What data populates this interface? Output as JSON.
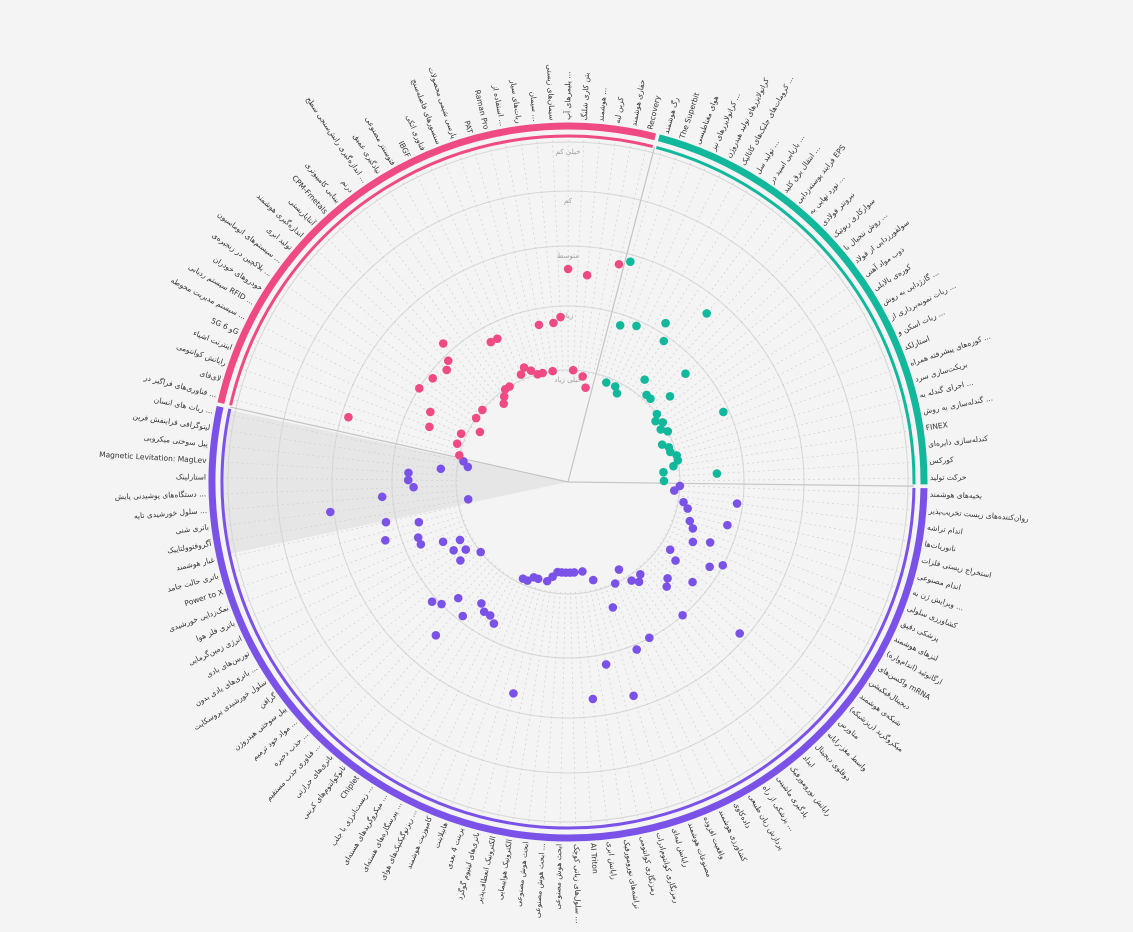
{
  "chart_data": {
    "type": "scatter",
    "subtype": "radial-dot-plot",
    "title": "",
    "ring_labels": [
      "خیلی کم",
      "کم",
      "متوسط",
      "زیاد",
      "خیلی زیاد"
    ],
    "start_angle_deg": 90,
    "sectors": [
      {
        "name": "purple",
        "color": "#7b52e8"
      },
      {
        "name": "teal",
        "color": "#12b89b"
      },
      {
        "name": "pink",
        "color": "#ef4a84"
      }
    ],
    "items": [
      {
        "label": "بخیه‌های هوشمند",
        "sector": "purple",
        "value": 4.4
      },
      {
        "label": "روان‌کننده‌های زیست تخریب‌پذیر",
        "sector": "purple",
        "value": 4.5
      },
      {
        "label": "اندام تراشه",
        "sector": "purple",
        "value": 3.3
      },
      {
        "label": "نانوربات‌ها",
        "sector": "purple",
        "value": 4.3
      },
      {
        "label": "استخراج زیستی فلزات",
        "sector": "purple",
        "value": 4.2
      },
      {
        "label": "اندام مصنوعی",
        "sector": "purple",
        "value": 3.4
      },
      {
        "label": "ویرایش ژن به ...",
        "sector": "purple",
        "value": 4.1
      },
      {
        "label": "کشاورزی سلولی",
        "sector": "purple",
        "value": 4.0
      },
      {
        "label": "پزشکی دقیق",
        "sector": "purple",
        "value": 3.6
      },
      {
        "label": "لنزهای هوشمند",
        "sector": "purple",
        "value": 3.9
      },
      {
        "label": "ارگانوئید (اندام‌واره)",
        "sector": "purple",
        "value": 3.2
      },
      {
        "label": "واکسن‌های mRNA",
        "sector": "purple",
        "value": 3.4
      },
      {
        "label": "دیجیتال‌فیکیشن",
        "sector": "purple",
        "value": 4.2
      },
      {
        "label": "شبکه‌ی هوشمند",
        "sector": "purple",
        "value": 4.0
      },
      {
        "label": "میکروگرید (ریزشبکه)",
        "sector": "purple",
        "value": 3.5
      },
      {
        "label": "متاورس",
        "sector": "purple",
        "value": 2.2
      },
      {
        "label": "واسط مغز-رایانه",
        "sector": "purple",
        "value": 3.9
      },
      {
        "label": "دوقلوی دیجیتال",
        "sector": "purple",
        "value": 3.8
      },
      {
        "label": "ابداد",
        "sector": "purple",
        "value": 3.2
      },
      {
        "label": "رایانش نورومورفیک",
        "sector": "purple",
        "value": 4.3
      },
      {
        "label": "یادگیری ماشینی",
        "sector": "purple",
        "value": 4.2
      },
      {
        "label": "پزشکی از راه ...",
        "sector": "purple",
        "value": 4.3
      },
      {
        "label": "پردازش زبان طبیعی",
        "sector": "purple",
        "value": 4.6
      },
      {
        "label": "داده‌کاوی",
        "sector": "purple",
        "value": 3.2
      },
      {
        "label": "کشاورزی هوشمند",
        "sector": "purple",
        "value": 4.4
      },
      {
        "label": "واقعیت افزوده",
        "sector": "purple",
        "value": 3.1
      },
      {
        "label": "مصنوعات هوشمند",
        "sector": "purple",
        "value": 4.0
      },
      {
        "label": "رایانش لبه‌ای",
        "sector": "purple",
        "value": 2.3
      },
      {
        "label": "رمزنگاری کوانتوم‌ادرات",
        "sector": "purple",
        "value": 4.6
      },
      {
        "label": "رمزنگاری کوانتومی",
        "sector": "purple",
        "value": 3.0
      },
      {
        "label": "تراشه‌های نورومورفیک",
        "sector": "purple",
        "value": 4.8
      },
      {
        "label": "رایانش ابری",
        "sector": "purple",
        "value": 2.4
      },
      {
        "label": "AI Triton",
        "sector": "purple",
        "value": 4.8
      },
      {
        "label": "سلول‌های زیاتی کوچک ...",
        "sector": "purple",
        "value": 4.8
      },
      {
        "label": "ابحث هوش مصنوعی",
        "sector": "purple",
        "value": 4.8
      },
      {
        "label": "ابحث هوش مصنوعی ...",
        "sector": "purple",
        "value": 4.8
      },
      {
        "label": "ابحث هوش مصنوعی",
        "sector": "purple",
        "value": 4.8
      },
      {
        "label": "الکترونیک هواپیمایی",
        "sector": "purple",
        "value": 4.7
      },
      {
        "label": "الکترونیک انعطاف‌پذیر",
        "sector": "purple",
        "value": 4.6
      },
      {
        "label": "باتری‌های لیتیوم گوگرد",
        "sector": "purple",
        "value": 2.4
      },
      {
        "label": "پرینت 4 بعدی",
        "sector": "purple",
        "value": 4.6
      },
      {
        "label": "هابیلاینت",
        "sector": "purple",
        "value": 4.6
      },
      {
        "label": "کامپوزیت هوشمند",
        "sector": "purple",
        "value": 4.5
      },
      {
        "label": "ریزتوگیکنیک‌های هوای ...",
        "sector": "purple",
        "value": 4.5
      },
      {
        "label": "پیرسگاره‌های هسته‌ای ...",
        "sector": "purple",
        "value": 3.5
      },
      {
        "label": "میکروگرید‌های هسته‌ای ...",
        "sector": "purple",
        "value": 3.6
      },
      {
        "label": "زیست‌انرژی با جلب ...",
        "sector": "purple",
        "value": 3.6
      },
      {
        "label": "Chiplet",
        "sector": "purple",
        "value": 3.7
      },
      {
        "label": "نانوکوانتوم‌های کربنی",
        "sector": "purple",
        "value": 3.3
      },
      {
        "label": "باتری‌های حرارتی",
        "sector": "purple",
        "value": 2.7
      },
      {
        "label": "فناوری جذب مستقیم ...",
        "sector": "purple",
        "value": 3.5
      },
      {
        "label": "حذب ذخیره ...",
        "sector": "purple",
        "value": 3.2
      },
      {
        "label": "مواد خود ترمیم ...",
        "sector": "purple",
        "value": 3.1
      },
      {
        "label": "پیل سوختی هیدروژن",
        "sector": "purple",
        "value": 4.4
      },
      {
        "label": "گرافن",
        "sector": "purple",
        "value": 4.0
      },
      {
        "label": "سلول خورشیدی پروسکایت",
        "sector": "purple",
        "value": 4.2
      },
      {
        "label": "باتری‌های یادی بدون ...",
        "sector": "purple",
        "value": 4.0
      },
      {
        "label": "توربین‌های بادی",
        "sector": "purple",
        "value": 4.2
      },
      {
        "label": "انرژی زمین‌گرمایی",
        "sector": "purple",
        "value": 3.9
      },
      {
        "label": "باتری فلز هوا",
        "sector": "purple",
        "value": 3.5
      },
      {
        "label": "نمک‌زدایی خورشیدی",
        "sector": "purple",
        "value": 3.5
      },
      {
        "label": "Power to X",
        "sector": "purple",
        "value": 2.9
      },
      {
        "label": "باتری حالت جامد",
        "sector": "purple",
        "value": 3.6
      },
      {
        "label": "غبار هوشمند",
        "sector": "purple",
        "value": 3.0
      },
      {
        "label": "آگروفتوولتاییک",
        "sector": "purple",
        "value": 4.6
      },
      {
        "label": "باتری شنی",
        "sector": "purple",
        "value": 2.0
      },
      {
        "label": "سلول خورشیدی تایه ...",
        "sector": "purple",
        "value": 3.0
      },
      {
        "label": "دستگاه‌های پوشیدنی پایش ...",
        "sector": "purple",
        "value": 3.6
      },
      {
        "label": "استارلینک",
        "sector": "purple",
        "value": 3.5
      },
      {
        "label": "Magnetic Levitation: MagLev",
        "sector": "purple",
        "value": 3.5
      },
      {
        "label": "پیل سوختی میکروبی",
        "sector": "purple",
        "value": 4.1
      },
      {
        "label": "لیتوگرافی فرابنفش فرین",
        "sector": "purple",
        "value": 4.6
      },
      {
        "label": "ربات های انسان ...",
        "sector": "purple",
        "value": 4.5
      },
      {
        "label": "فناوری‌های فراگیر در ...",
        "sector": "pink",
        "value": 4.4
      },
      {
        "label": "لای‌فای",
        "sector": "pink",
        "value": 2.2
      },
      {
        "label": "رایانش کوانتومی",
        "sector": "pink",
        "value": 4.3
      },
      {
        "label": "اینترنت اشیاء",
        "sector": "pink",
        "value": 3.7
      },
      {
        "label": "5G و 6G",
        "sector": "pink",
        "value": 4.3
      },
      {
        "label": "سیستم مدیریت محوطه ...",
        "sector": "pink",
        "value": 3.6
      },
      {
        "label": "سیستم ردیابی RFID ...",
        "sector": "pink",
        "value": 4.6
      },
      {
        "label": "خودروهای خودران",
        "sector": "pink",
        "value": 3.2
      },
      {
        "label": "بلاکچین در زنجیره‌ی ...",
        "sector": "pink",
        "value": 4.4
      },
      {
        "label": "سیستم‌های اتوماسیون ...",
        "sector": "pink",
        "value": 3.3
      },
      {
        "label": "تولید ابری",
        "sector": "pink",
        "value": 4.4
      },
      {
        "label": "اندازه‌گیری هوشمند",
        "sector": "pink",
        "value": 3.4
      },
      {
        "label": "آنتاپاریستی",
        "sector": "pink",
        "value": 3.3
      },
      {
        "label": "CPM-Fmetals",
        "sector": "pink",
        "value": 3.0
      },
      {
        "label": "بینایی کامپیوتری",
        "sector": "pink",
        "value": 4.6
      },
      {
        "label": "درنم",
        "sector": "pink",
        "value": 4.5
      },
      {
        "label": "اندازه‌گیری رانش‌سنجی سطح ...",
        "sector": "pink",
        "value": 4.4
      },
      {
        "label": "نیادگیری عمیق",
        "sector": "pink",
        "value": 4.4
      },
      {
        "label": "فتوسنتز مصنوعی",
        "sector": "pink",
        "value": 3.5
      },
      {
        "label": "IBGF",
        "sector": "pink",
        "value": 3.5
      },
      {
        "label": "فناوری اتکی",
        "sector": "pink",
        "value": 4.3
      },
      {
        "label": "سنسورهای فاصله‌سنج",
        "sector": "pink",
        "value": 4.2
      },
      {
        "label": "پارسی شیمی محصولات",
        "sector": "pink",
        "value": 4.3
      },
      {
        "label": "PAT",
        "sector": "pink",
        "value": 4.4
      },
      {
        "label": "Raman Pro",
        "sector": "pink",
        "value": 4.4
      },
      {
        "label": "استفاده از ...",
        "sector": "pink",
        "value": 3.5
      },
      {
        "label": "ربات‌های سیار",
        "sector": "pink",
        "value": 4.4
      },
      {
        "label": "سیمان ...",
        "sector": "pink",
        "value": 3.5
      },
      {
        "label": "سیمان‌های زیستی",
        "sector": "pink",
        "value": 3.4
      },
      {
        "label": "پلیمرهای آپ ...",
        "sector": "pink",
        "value": 2.5
      },
      {
        "label": "بتن کاری شلنگ",
        "sector": "pink",
        "value": 4.4
      },
      {
        "label": "هوشمند ...",
        "sector": "pink",
        "value": 2.6
      },
      {
        "label": "کربن لبه",
        "sector": "pink",
        "value": 4.5
      },
      {
        "label": "حفاری هوشمند",
        "sector": "pink",
        "value": 4.7
      },
      {
        "label": "Recovery",
        "sector": "pink",
        "value": 2.3
      },
      {
        "label": "رگ هوشمند",
        "sector": "teal",
        "value": 2.2
      },
      {
        "label": "The Superbit",
        "sector": "teal",
        "value": 3.4
      },
      {
        "label": "هوای مغناطیسی",
        "sector": "teal",
        "value": 4.5
      },
      {
        "label": "کراتولایزرهای نیز ...",
        "sector": "teal",
        "value": 3.3
      },
      {
        "label": "کراتولایزرهای تولید هیدروژن",
        "sector": "teal",
        "value": 4.5
      },
      {
        "label": "کرومات‌های جلبک‌های کاتالیک ...",
        "sector": "teal",
        "value": 4.6
      },
      {
        "label": "تولید سل ...",
        "sector": "teal",
        "value": 3.0
      },
      {
        "label": "بازیابی اسید در ...",
        "sector": "teal",
        "value": 3.3
      },
      {
        "label": "انتقال برق کلید ...",
        "sector": "teal",
        "value": 4.1
      },
      {
        "label": "فرایند پوسته‌زدایی EPS",
        "sector": "teal",
        "value": 2.4
      },
      {
        "label": "نورد نهایی به ...",
        "sector": "teal",
        "value": 4.3
      },
      {
        "label": "نبرونتر فولادی",
        "sector": "teal",
        "value": 4.3
      },
      {
        "label": "سوارکاری ربوتیک",
        "sector": "teal",
        "value": 3.5
      },
      {
        "label": "روش نتجیال با ...",
        "sector": "teal",
        "value": 4.0
      },
      {
        "label": "سولفورزدایی از فولاد",
        "sector": "teal",
        "value": 4.4
      },
      {
        "label": "ذوب مواد آهنی",
        "sector": "teal",
        "value": 4.5
      },
      {
        "label": "کوره‌ی بالابلی",
        "sector": "teal",
        "value": 4.4
      },
      {
        "label": "گازژدایی به روش ...",
        "sector": "teal",
        "value": 4.5
      },
      {
        "label": "ربات نمونه‌برداری از ...",
        "sector": "teal",
        "value": 4.4
      },
      {
        "label": "ربات اسکن و ...",
        "sector": "teal",
        "value": 3.3
      },
      {
        "label": "استارلکد",
        "sector": "teal",
        "value": 4.6
      },
      {
        "label": "کوره‌های پیشرفته همراه ...",
        "sector": "teal",
        "value": 4.5
      },
      {
        "label": "بریکت‌سازی سرد",
        "sector": "teal",
        "value": 4.5
      },
      {
        "label": "اجرای گندله به ...",
        "sector": "teal",
        "value": 4.4
      },
      {
        "label": "گندله‌سازی به روش ...",
        "sector": "teal",
        "value": 4.4
      },
      {
        "label": "FINEX",
        "sector": "teal",
        "value": 4.5
      },
      {
        "label": "کندله‌سازی دایره‌ای",
        "sector": "teal",
        "value": 4.7
      },
      {
        "label": "کورکس",
        "sector": "teal",
        "value": 3.7
      },
      {
        "label": "حرکت تولید",
        "sector": "teal",
        "value": 4.7
      }
    ]
  }
}
